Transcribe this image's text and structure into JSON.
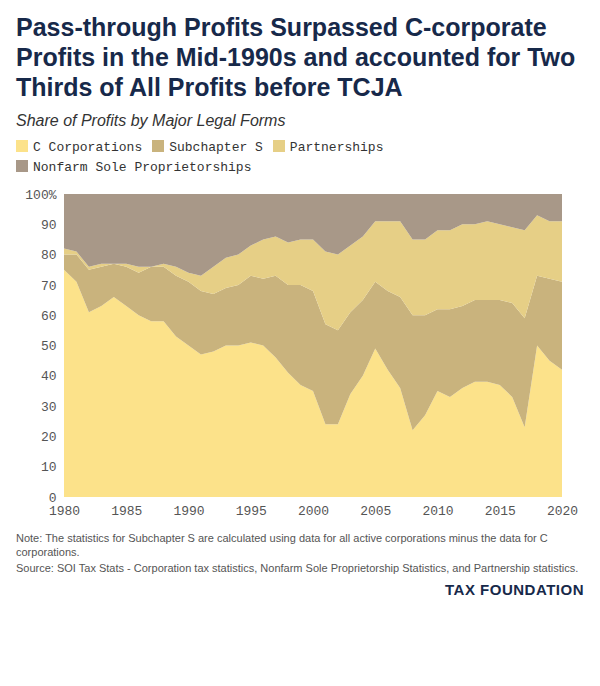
{
  "chart_data": {
    "type": "area",
    "title": "Pass-through Profits Surpassed C-corporate Profits in the Mid-1990s and accounted for Two Thirds of All Profits before TCJA",
    "subtitle": "Share of Profits by Major Legal Forms",
    "notes": [
      "Note: The statistics for Subchapter S are calculated using data for all active corporations minus the data for C corporations.",
      "Source: SOI Tax Stats - Corporation tax statistics, Nonfarm Sole Proprietorship Statistics, and Partnership statistics."
    ],
    "brand": "TAX FOUNDATION",
    "stacked": true,
    "grid": false,
    "legend": "top",
    "x": [
      1980,
      1981,
      1982,
      1983,
      1984,
      1985,
      1986,
      1987,
      1988,
      1989,
      1990,
      1991,
      1992,
      1993,
      1994,
      1995,
      1996,
      1997,
      1998,
      1999,
      2000,
      2001,
      2002,
      2003,
      2004,
      2005,
      2006,
      2007,
      2008,
      2009,
      2010,
      2011,
      2012,
      2013,
      2014,
      2015,
      2016,
      2017,
      2018,
      2019,
      2020
    ],
    "xlim": [
      1980,
      2020
    ],
    "xticks": [
      1980,
      1985,
      1990,
      1995,
      2000,
      2005,
      2010,
      2015,
      2020
    ],
    "ylim": [
      0,
      100
    ],
    "yticks": [
      0,
      10,
      20,
      30,
      40,
      50,
      60,
      70,
      80,
      90,
      {
        "value": 100,
        "label": "100%"
      }
    ],
    "series": [
      {
        "name": "C Corporations",
        "color": "#fce28a",
        "values": [
          75,
          71,
          61,
          63,
          66,
          63,
          60,
          58,
          58,
          53,
          50,
          47,
          48,
          50,
          50,
          51,
          50,
          46,
          41,
          37,
          35,
          24,
          24,
          34,
          40,
          49,
          42,
          36,
          22,
          27,
          35,
          33,
          36,
          38,
          38,
          37,
          33,
          23,
          50,
          45,
          42
        ]
      },
      {
        "name": "Subchapter S",
        "color": "#c9b37d",
        "values": [
          5,
          9,
          14,
          13,
          11,
          13,
          14,
          18,
          18,
          20,
          21,
          21,
          19,
          19,
          20,
          22,
          22,
          27,
          29,
          33,
          33,
          33,
          31,
          27,
          25,
          22,
          26,
          30,
          38,
          33,
          27,
          29,
          27,
          27,
          27,
          28,
          31,
          36,
          23,
          27,
          29
        ]
      },
      {
        "name": "Partnerships",
        "color": "#e6cf86",
        "values": [
          2,
          1,
          1,
          1,
          0,
          1,
          2,
          0,
          1,
          3,
          3,
          5,
          9,
          10,
          10,
          10,
          13,
          13,
          14,
          15,
          17,
          24,
          25,
          22,
          21,
          20,
          23,
          25,
          25,
          25,
          26,
          26,
          27,
          25,
          26,
          25,
          25,
          29,
          20,
          19,
          20
        ]
      },
      {
        "name": "Nonfarm Sole Proprietorships",
        "color": "#a89888",
        "values": [
          18,
          19,
          24,
          23,
          23,
          23,
          24,
          24,
          23,
          24,
          26,
          27,
          24,
          21,
          20,
          17,
          15,
          14,
          16,
          15,
          15,
          19,
          20,
          17,
          14,
          9,
          9,
          9,
          15,
          15,
          12,
          12,
          10,
          10,
          9,
          10,
          11,
          12,
          7,
          9,
          9
        ]
      }
    ]
  }
}
